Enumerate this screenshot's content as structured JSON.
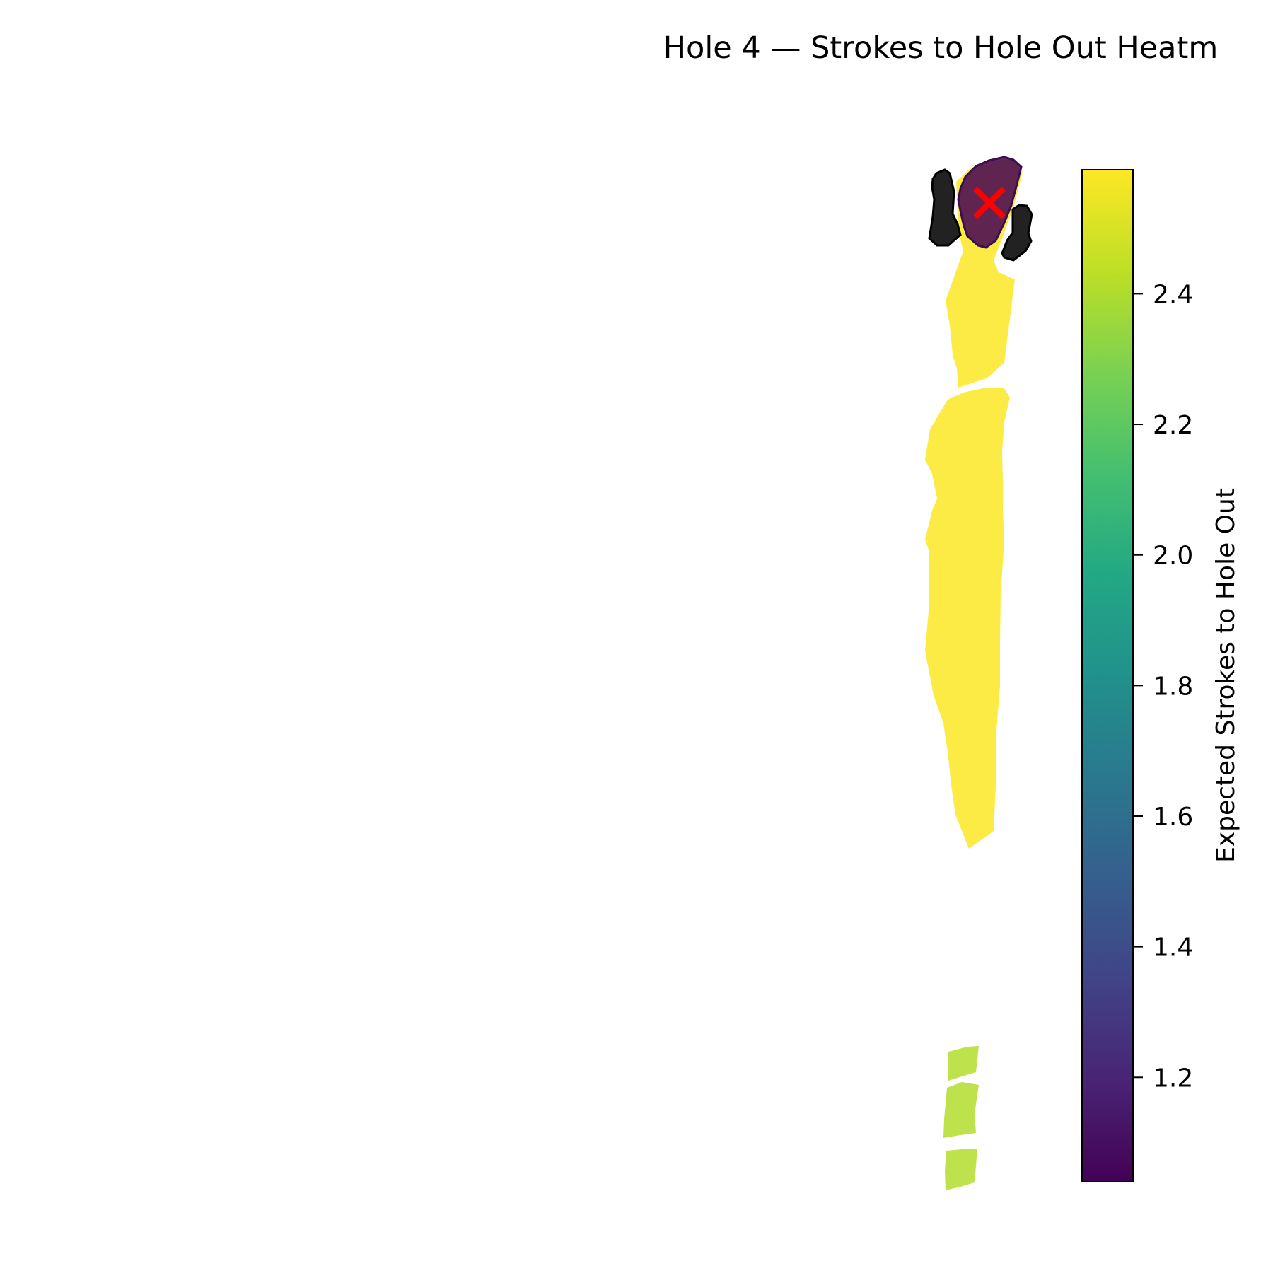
{
  "chart_data": {
    "type": "heatmap",
    "title": "Hole 4 — Strokes to Hole Out Heatm",
    "colorbar": {
      "label": "Expected Strokes to Hole Out",
      "range": [
        1.04,
        2.59
      ],
      "ticks": [
        1.2,
        1.4,
        1.6,
        1.8,
        2.0,
        2.2,
        2.4
      ],
      "tick_labels": [
        "1.2",
        "1.4",
        "1.6",
        "1.8",
        "2.0",
        "2.2",
        "2.4"
      ],
      "colormap": "viridis"
    },
    "regions": [
      {
        "name": "green",
        "value": 1.04
      },
      {
        "name": "green surround",
        "value": 2.59
      },
      {
        "name": "fairway upper",
        "value": 2.59
      },
      {
        "name": "fairway lower",
        "value": 2.59
      },
      {
        "name": "tee box 1",
        "value": 2.41
      },
      {
        "name": "tee box 2",
        "value": 2.41
      },
      {
        "name": "tee box 3",
        "value": 2.41
      }
    ],
    "hazards": [
      {
        "name": "bunker left"
      },
      {
        "name": "bunker right"
      }
    ],
    "pin_marker": {
      "shape": "x",
      "color": "#ff0000"
    },
    "grid": false,
    "axes_visible": false
  }
}
